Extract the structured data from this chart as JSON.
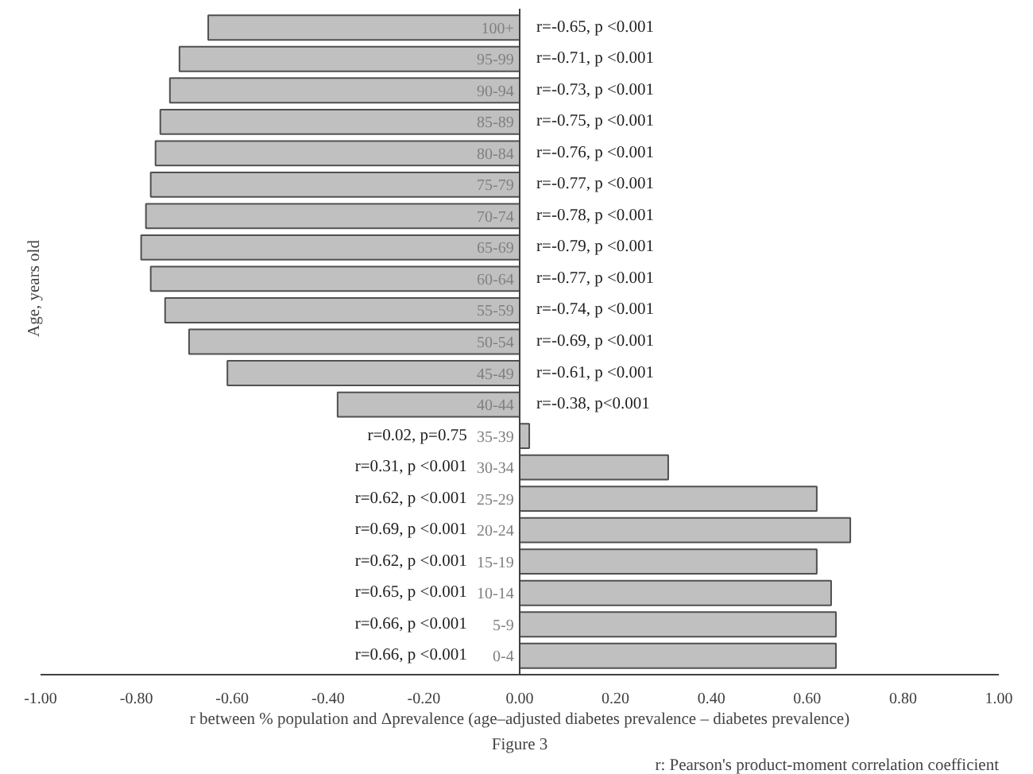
{
  "chart_data": {
    "type": "bar",
    "orientation": "horizontal",
    "xlabel": "r between % population and Δprevalence (age–adjusted diabetes prevalence – diabetes prevalence)",
    "ylabel": "Age, years old",
    "categories": [
      "100+",
      "95-99",
      "90-94",
      "85-89",
      "80-84",
      "75-79",
      "70-74",
      "65-69",
      "60-64",
      "55-59",
      "50-54",
      "45-49",
      "40-44",
      "35-39",
      "30-34",
      "25-29",
      "20-24",
      "15-19",
      "10-14",
      "5-9",
      "0-4"
    ],
    "values": [
      -0.65,
      -0.71,
      -0.73,
      -0.75,
      -0.76,
      -0.77,
      -0.78,
      -0.79,
      -0.77,
      -0.74,
      -0.69,
      -0.61,
      -0.38,
      0.02,
      0.31,
      0.62,
      0.69,
      0.62,
      0.65,
      0.66,
      0.66
    ],
    "value_labels": [
      "r=-0.65, p <0.001",
      "r=-0.71, p <0.001",
      "r=-0.73, p <0.001",
      "r=-0.75, p <0.001",
      "r=-0.76, p <0.001",
      "r=-0.77, p <0.001",
      "r=-0.78, p <0.001",
      "r=-0.79, p <0.001",
      "r=-0.77, p <0.001",
      "r=-0.74, p <0.001",
      "r=-0.69, p <0.001",
      "r=-0.61, p <0.001",
      "r=-0.38, p<0.001",
      "r=0.02, p=0.75",
      "r=0.31, p <0.001",
      "r=0.62, p <0.001",
      "r=0.69, p <0.001",
      "r=0.62, p <0.001",
      "r=0.65, p <0.001",
      "r=0.66, p <0.001",
      "r=0.66, p <0.001"
    ],
    "color": "#c0c0c0",
    "xlim": [
      -1,
      1
    ],
    "xticks": [
      {
        "value": -1,
        "label": "-1.00"
      },
      {
        "value": -0.8,
        "label": "-0.80"
      },
      {
        "value": -0.6,
        "label": "-0.60"
      },
      {
        "value": -0.4,
        "label": "-0.40"
      },
      {
        "value": -0.2,
        "label": "-0.20"
      },
      {
        "value": 0,
        "label": "0.00"
      },
      {
        "value": 0.2,
        "label": "0.20"
      },
      {
        "value": 0.4,
        "label": "0.40"
      },
      {
        "value": 0.6,
        "label": "0.60"
      },
      {
        "value": 0.8,
        "label": "0.80"
      },
      {
        "value": 1,
        "label": "1.00"
      }
    ],
    "grid": false,
    "annotations": [
      "Figure 3",
      "r: Pearson's product-moment correlation coefficient"
    ]
  }
}
